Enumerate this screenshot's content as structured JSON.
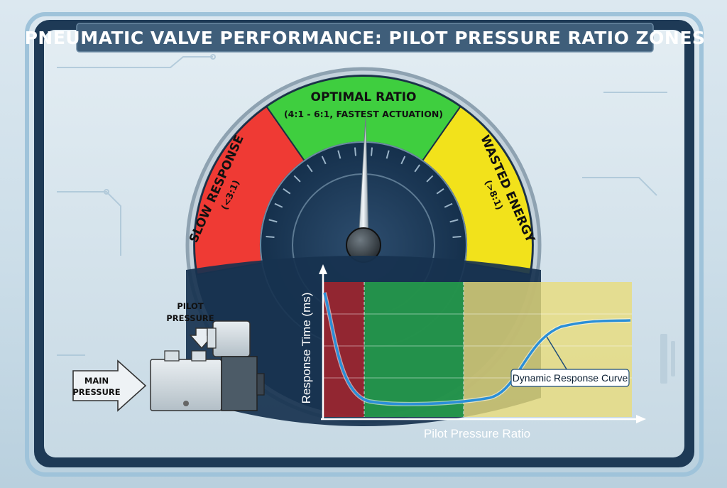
{
  "title": "PNEUMATIC VALVE PERFORMANCE: PILOT PRESSURE RATIO ZONES",
  "zones": [
    {
      "title": "SLOW RESPONSE",
      "subtitle": "(<3:1)",
      "color": "#ef3a34"
    },
    {
      "title": "OPTIMAL RATIO",
      "subtitle": "(4:1 - 6:1, FASTEST ACTUATION)",
      "color": "#3fce3f"
    },
    {
      "title": "WASTED ENERGY",
      "subtitle": "(>8:1)",
      "color": "#f2e21b"
    }
  ],
  "chart": {
    "y_label": "Response Time (ms)",
    "x_label": "Pilot Pressure Ratio",
    "curve_label": "Dynamic Response Curve",
    "curve_color": "#2a8fd8"
  },
  "valve": {
    "pilot_label_line1": "PILOT",
    "pilot_label_line2": "PRESSURE",
    "main_label_line1": "MAIN",
    "main_label_line2": "PRESSURE"
  }
}
